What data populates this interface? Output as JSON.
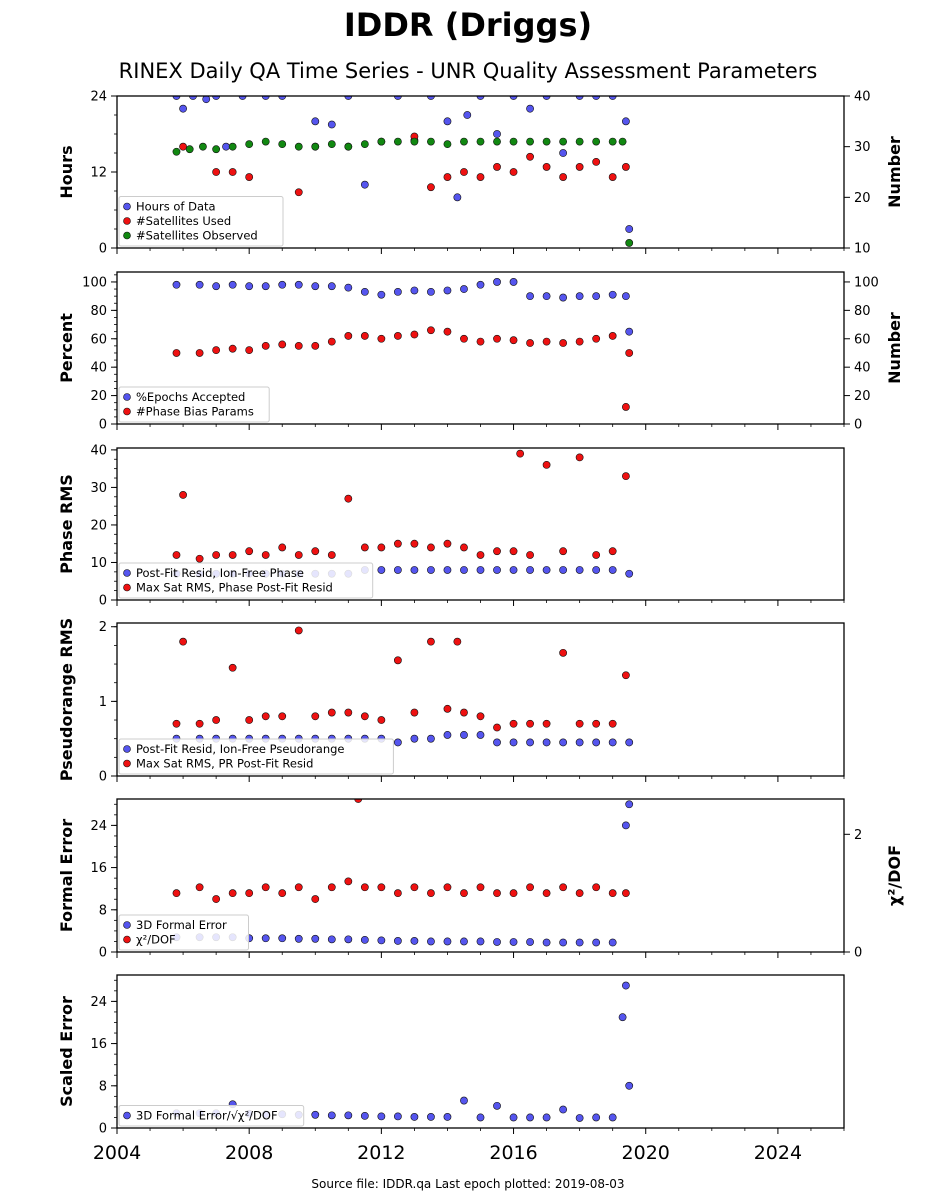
{
  "title": "IDDR (Driggs)",
  "subtitle": "RINEX Daily QA Time Series - UNR Quality Assessment Parameters",
  "footer": "Source file: IDDR.qa Last epoch plotted: 2019-08-03",
  "colors": {
    "blue": "#5555ee",
    "red": "#ee1111",
    "green": "#118811",
    "edge": "#111111"
  },
  "x_axis": {
    "range": [
      2004,
      2026
    ],
    "ticks": [
      2004,
      2008,
      2012,
      2016,
      2020,
      2024
    ]
  },
  "chart_data": [
    {
      "type": "scatter",
      "ylabel": "Hours",
      "ylabel2": "Number",
      "ylim": [
        0,
        24
      ],
      "ylim2": [
        10,
        40
      ],
      "yticks": [
        0,
        12,
        24
      ],
      "yticks2": [
        10,
        20,
        30,
        40
      ],
      "legend_position": "lower-left",
      "series": [
        {
          "name": "Hours of Data",
          "color": "#5555ee",
          "axis": "left",
          "x": [
            2005.8,
            2006.0,
            2006.3,
            2006.7,
            2007.0,
            2007.3,
            2007.8,
            2008.5,
            2009.0,
            2010.0,
            2010.5,
            2011.0,
            2011.5,
            2012.5,
            2013.0,
            2013.5,
            2014.0,
            2014.3,
            2014.6,
            2015.0,
            2015.5,
            2016.0,
            2016.5,
            2017.0,
            2017.5,
            2018.0,
            2018.5,
            2019.0,
            2019.4,
            2019.5
          ],
          "y": [
            24,
            22,
            24,
            23.5,
            24,
            16,
            24,
            24,
            24,
            20,
            19.5,
            24,
            10,
            24,
            17,
            24,
            20,
            8,
            21,
            24,
            18,
            24,
            22,
            24,
            15,
            24,
            24,
            24,
            20,
            3
          ]
        },
        {
          "name": "#Satellites Used",
          "color": "#ee1111",
          "axis": "right",
          "x": [
            2006.0,
            2007.0,
            2007.5,
            2008.0,
            2009.5,
            2010.0,
            2011.0,
            2012.0,
            2013.0,
            2013.5,
            2014.0,
            2014.5,
            2015.0,
            2015.5,
            2016.0,
            2016.5,
            2017.0,
            2017.5,
            2018.0,
            2018.5,
            2019.0,
            2019.4
          ],
          "y": [
            30,
            25,
            25,
            24,
            21,
            30,
            30,
            31,
            32,
            22,
            24,
            25,
            24,
            26,
            25,
            28,
            26,
            24,
            26,
            27,
            24,
            26
          ]
        },
        {
          "name": "#Satellites Observed",
          "color": "#118811",
          "axis": "right",
          "x": [
            2005.8,
            2006.2,
            2006.6,
            2007.0,
            2007.5,
            2008.0,
            2008.5,
            2009.0,
            2009.5,
            2010.0,
            2010.5,
            2011.0,
            2011.5,
            2012.0,
            2012.5,
            2013.0,
            2013.5,
            2014.0,
            2014.5,
            2015.0,
            2015.5,
            2016.0,
            2016.5,
            2017.0,
            2017.5,
            2018.0,
            2018.5,
            2019.0,
            2019.3,
            2019.5
          ],
          "y": [
            29,
            29.5,
            30,
            29.5,
            30,
            30.5,
            31,
            30.5,
            30,
            30,
            30.5,
            30,
            30.5,
            31,
            31,
            31,
            31,
            30.5,
            31,
            31,
            31,
            31,
            31,
            31,
            31,
            31,
            31,
            31,
            31,
            11
          ]
        }
      ]
    },
    {
      "type": "scatter",
      "ylabel": "Percent",
      "ylabel2": "Number",
      "ylim": [
        0,
        107
      ],
      "ylim2": [
        0,
        107
      ],
      "yticks": [
        0,
        20,
        40,
        60,
        80,
        100
      ],
      "yticks2": [
        0,
        20,
        40,
        60,
        80,
        100
      ],
      "legend_position": "lower-left",
      "series": [
        {
          "name": "%Epochs Accepted",
          "color": "#5555ee",
          "axis": "left",
          "x": [
            2005.8,
            2006.5,
            2007.0,
            2007.5,
            2008.0,
            2008.5,
            2009.0,
            2009.5,
            2010.0,
            2010.5,
            2011.0,
            2011.5,
            2012.0,
            2012.5,
            2013.0,
            2013.5,
            2014.0,
            2014.5,
            2015.0,
            2015.5,
            2016.0,
            2016.5,
            2017.0,
            2017.5,
            2018.0,
            2018.5,
            2019.0,
            2019.4,
            2019.5
          ],
          "y": [
            98,
            98,
            97,
            98,
            97,
            97,
            98,
            98,
            97,
            97,
            96,
            93,
            91,
            93,
            94,
            93,
            94,
            95,
            98,
            100,
            100,
            90,
            90,
            89,
            90,
            90,
            91,
            90,
            65
          ]
        },
        {
          "name": "#Phase Bias Params",
          "color": "#ee1111",
          "axis": "right",
          "x": [
            2005.8,
            2006.5,
            2007.0,
            2007.5,
            2008.0,
            2008.5,
            2009.0,
            2009.5,
            2010.0,
            2010.5,
            2011.0,
            2011.5,
            2012.0,
            2012.5,
            2013.0,
            2013.5,
            2014.0,
            2014.5,
            2015.0,
            2015.5,
            2016.0,
            2016.5,
            2017.0,
            2017.5,
            2018.0,
            2018.5,
            2019.0,
            2019.4,
            2019.5
          ],
          "y": [
            50,
            50,
            52,
            53,
            52,
            55,
            56,
            55,
            55,
            58,
            62,
            62,
            60,
            62,
            63,
            66,
            65,
            60,
            58,
            60,
            59,
            57,
            58,
            57,
            58,
            60,
            62,
            12,
            50
          ]
        }
      ]
    },
    {
      "type": "scatter",
      "ylabel": "Phase RMS",
      "ylim": [
        0,
        40.5
      ],
      "yticks": [
        0,
        10,
        20,
        30,
        40
      ],
      "legend_position": "lower-left",
      "series": [
        {
          "name": "Post-Fit Resid, Ion-Free Phase",
          "color": "#5555ee",
          "axis": "left",
          "x": [
            2005.8,
            2006.5,
            2007.0,
            2007.5,
            2008.0,
            2008.5,
            2009.0,
            2009.5,
            2010.0,
            2010.5,
            2011.0,
            2011.5,
            2012.0,
            2012.5,
            2013.0,
            2013.5,
            2014.0,
            2014.5,
            2015.0,
            2015.5,
            2016.0,
            2016.5,
            2017.0,
            2017.5,
            2018.0,
            2018.5,
            2019.0,
            2019.5
          ],
          "y": [
            7,
            7,
            7,
            7,
            7,
            7,
            7,
            7,
            7,
            7,
            7,
            8,
            8,
            8,
            8,
            8,
            8,
            8,
            8,
            8,
            8,
            8,
            8,
            8,
            8,
            8,
            8,
            7
          ]
        },
        {
          "name": "Max Sat RMS, Phase Post-Fit Resid",
          "color": "#ee1111",
          "axis": "left",
          "x": [
            2005.8,
            2006.0,
            2006.5,
            2007.0,
            2007.5,
            2008.0,
            2008.5,
            2009.0,
            2009.5,
            2010.0,
            2010.5,
            2011.0,
            2011.5,
            2012.0,
            2012.5,
            2013.0,
            2013.5,
            2014.0,
            2014.5,
            2015.0,
            2015.5,
            2016.0,
            2016.2,
            2016.5,
            2017.0,
            2017.5,
            2018.0,
            2018.5,
            2019.0,
            2019.4
          ],
          "y": [
            12,
            28,
            11,
            12,
            12,
            13,
            12,
            14,
            12,
            13,
            12,
            27,
            14,
            14,
            15,
            15,
            14,
            15,
            14,
            12,
            13,
            13,
            39,
            12,
            36,
            13,
            38,
            12,
            13,
            33
          ]
        }
      ]
    },
    {
      "type": "scatter",
      "ylabel": "Pseudorange RMS",
      "ylim": [
        0,
        2.05
      ],
      "yticks": [
        0,
        1,
        2
      ],
      "legend_position": "lower-left",
      "series": [
        {
          "name": "Post-Fit Resid, Ion-Free Pseudorange",
          "color": "#5555ee",
          "axis": "left",
          "x": [
            2005.8,
            2006.5,
            2007.0,
            2007.5,
            2008.0,
            2008.5,
            2009.0,
            2009.5,
            2010.0,
            2010.5,
            2011.0,
            2011.5,
            2012.0,
            2012.5,
            2013.0,
            2013.5,
            2014.0,
            2014.5,
            2015.0,
            2015.5,
            2016.0,
            2016.5,
            2017.0,
            2017.5,
            2018.0,
            2018.5,
            2019.0,
            2019.5
          ],
          "y": [
            0.5,
            0.5,
            0.5,
            0.5,
            0.5,
            0.5,
            0.5,
            0.5,
            0.5,
            0.5,
            0.5,
            0.5,
            0.5,
            0.45,
            0.5,
            0.5,
            0.55,
            0.55,
            0.55,
            0.45,
            0.45,
            0.45,
            0.45,
            0.45,
            0.45,
            0.45,
            0.45,
            0.45
          ]
        },
        {
          "name": "Max Sat RMS, PR Post-Fit Resid",
          "color": "#ee1111",
          "axis": "left",
          "x": [
            2005.8,
            2006.0,
            2006.5,
            2007.0,
            2007.5,
            2008.0,
            2008.5,
            2009.0,
            2009.5,
            2010.0,
            2010.5,
            2011.0,
            2011.5,
            2012.0,
            2012.5,
            2013.0,
            2013.5,
            2014.0,
            2014.3,
            2014.5,
            2015.0,
            2015.5,
            2016.0,
            2016.5,
            2017.0,
            2017.5,
            2018.0,
            2018.5,
            2019.0,
            2019.4
          ],
          "y": [
            0.7,
            1.8,
            0.7,
            0.75,
            1.45,
            0.75,
            0.8,
            0.8,
            1.95,
            0.8,
            0.85,
            0.85,
            0.8,
            0.75,
            1.55,
            0.85,
            1.8,
            0.9,
            1.8,
            0.85,
            0.8,
            0.65,
            0.7,
            0.7,
            0.7,
            1.65,
            0.7,
            0.7,
            0.7,
            1.35
          ]
        }
      ]
    },
    {
      "type": "scatter",
      "ylabel": "Formal Error",
      "ylabel2": "χ²/DOF",
      "ylim": [
        0,
        29
      ],
      "ylim2": [
        0,
        2.6
      ],
      "yticks": [
        0,
        8,
        16,
        24
      ],
      "yticks2": [
        0,
        2
      ],
      "legend_position": "lower-left",
      "series": [
        {
          "name": "3D Formal Error",
          "color": "#5555ee",
          "axis": "left",
          "x": [
            2005.8,
            2006.5,
            2007.0,
            2007.5,
            2008.0,
            2008.5,
            2009.0,
            2009.5,
            2010.0,
            2010.5,
            2011.0,
            2011.5,
            2012.0,
            2012.5,
            2013.0,
            2013.5,
            2014.0,
            2014.5,
            2015.0,
            2015.5,
            2016.0,
            2016.5,
            2017.0,
            2017.5,
            2018.0,
            2018.5,
            2019.0,
            2019.4,
            2019.5
          ],
          "y": [
            2.8,
            2.8,
            2.8,
            2.8,
            2.6,
            2.6,
            2.6,
            2.5,
            2.5,
            2.4,
            2.4,
            2.3,
            2.2,
            2.1,
            2.1,
            2.0,
            2.0,
            2.0,
            2.0,
            1.9,
            1.9,
            1.9,
            1.8,
            1.8,
            1.8,
            1.8,
            1.8,
            24,
            28
          ]
        },
        {
          "name": "χ²/DOF",
          "color": "#ee1111",
          "axis": "right",
          "x": [
            2005.8,
            2006.5,
            2007.0,
            2007.5,
            2008.0,
            2008.5,
            2009.0,
            2009.5,
            2010.0,
            2010.5,
            2011.0,
            2011.3,
            2011.5,
            2012.0,
            2012.5,
            2013.0,
            2013.5,
            2014.0,
            2014.5,
            2015.0,
            2015.5,
            2016.0,
            2016.5,
            2017.0,
            2017.5,
            2018.0,
            2018.5,
            2019.0,
            2019.4
          ],
          "y": [
            1.0,
            1.1,
            0.9,
            1.0,
            1.0,
            1.1,
            1.0,
            1.1,
            0.9,
            1.1,
            1.2,
            2.6,
            1.1,
            1.1,
            1.0,
            1.1,
            1.0,
            1.1,
            1.0,
            1.1,
            1.0,
            1.0,
            1.1,
            1.0,
            1.1,
            1.0,
            1.1,
            1.0,
            1.0
          ]
        }
      ]
    },
    {
      "type": "scatter",
      "ylabel": "Scaled Error",
      "ylim": [
        0,
        29
      ],
      "yticks": [
        0,
        8,
        16,
        24
      ],
      "legend_position": "lower-left",
      "series": [
        {
          "name": "3D Formal Error/√χ²/DOF",
          "color": "#5555ee",
          "axis": "left",
          "x": [
            2005.8,
            2006.5,
            2007.0,
            2007.5,
            2008.0,
            2008.5,
            2009.0,
            2009.5,
            2010.0,
            2010.5,
            2011.0,
            2011.5,
            2012.0,
            2012.5,
            2013.0,
            2013.5,
            2014.0,
            2014.5,
            2015.0,
            2015.5,
            2016.0,
            2016.5,
            2017.0,
            2017.5,
            2018.0,
            2018.5,
            2019.0,
            2019.3,
            2019.4,
            2019.5
          ],
          "y": [
            2.8,
            2.8,
            2.8,
            4.5,
            2.7,
            2.6,
            2.6,
            2.5,
            2.5,
            2.4,
            2.4,
            2.3,
            2.2,
            2.2,
            2.1,
            2.1,
            2.1,
            5.2,
            2.0,
            4.2,
            2.0,
            2.0,
            2.0,
            3.5,
            1.9,
            2.0,
            2.0,
            21,
            27,
            8
          ]
        }
      ]
    }
  ]
}
